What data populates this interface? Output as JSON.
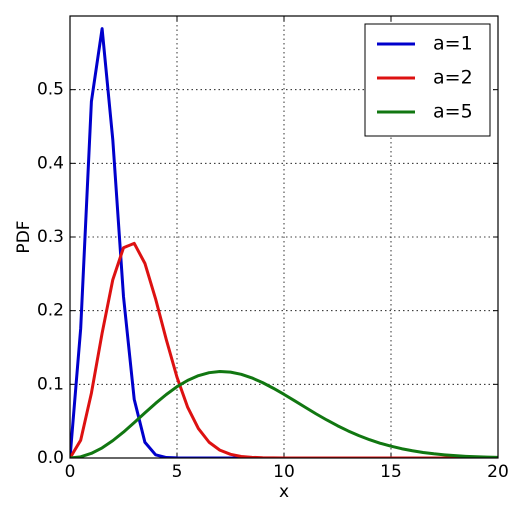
{
  "chart_data": {
    "type": "line",
    "x_label": "x",
    "y_label": "PDF",
    "x": [
      0,
      0.5,
      1,
      1.5,
      2,
      2.5,
      3,
      3.5,
      4,
      4.5,
      5,
      5.5,
      6,
      6.5,
      7,
      7.5,
      8,
      8.5,
      9,
      9.5,
      10,
      10.5,
      11,
      11.5,
      12,
      12.5,
      13,
      13.5,
      14,
      14.5,
      15,
      15.5,
      16,
      16.5,
      17,
      17.5,
      18,
      18.5,
      19,
      19.5,
      20
    ],
    "series": [
      {
        "name": "a=1",
        "color": "#0000cc",
        "values": [
          0,
          0.176,
          0.4839,
          0.5828,
          0.4319,
          0.2191,
          0.0798,
          0.0214,
          0.0043,
          0.0006,
          0.0001,
          0,
          0,
          0,
          0,
          0,
          0,
          0,
          0,
          0,
          0,
          0,
          0,
          0,
          0,
          0,
          0,
          0,
          0,
          0,
          0,
          0,
          0,
          0,
          0,
          0,
          0,
          0,
          0,
          0,
          0
        ]
      },
      {
        "name": "a=2",
        "color": "#dd1111",
        "values": [
          0,
          0.0242,
          0.088,
          0.1694,
          0.242,
          0.2854,
          0.2914,
          0.2642,
          0.216,
          0.1607,
          0.1096,
          0.0688,
          0.0399,
          0.0214,
          0.0107,
          0.005,
          0.0021,
          0.0009,
          0.0003,
          0.0001,
          0,
          0,
          0,
          0,
          0,
          0,
          0,
          0,
          0,
          0,
          0,
          0,
          0,
          0,
          0,
          0,
          0,
          0,
          0,
          0,
          0
        ]
      },
      {
        "name": "a=5",
        "color": "#117711",
        "values": [
          0,
          0.0016,
          0.0063,
          0.0137,
          0.0236,
          0.0352,
          0.048,
          0.0612,
          0.0742,
          0.0862,
          0.0968,
          0.1054,
          0.1118,
          0.1158,
          0.1174,
          0.1166,
          0.1136,
          0.1087,
          0.1023,
          0.0947,
          0.0864,
          0.0776,
          0.0687,
          0.0599,
          0.0516,
          0.0438,
          0.0367,
          0.0304,
          0.0248,
          0.02,
          0.016,
          0.0126,
          0.0098,
          0.0075,
          0.0057,
          0.0043,
          0.0032,
          0.0023,
          0.0017,
          0.0012,
          0.0009
        ]
      }
    ],
    "xlim": [
      0,
      20
    ],
    "xticks": [
      0,
      5,
      10,
      15,
      20
    ],
    "ylim": [
      0,
      0.6
    ],
    "yticks": [
      {
        "value": 0,
        "label": "0.0"
      },
      {
        "value": 0.1,
        "label": "0.1"
      },
      {
        "value": 0.2,
        "label": "0.2"
      },
      {
        "value": 0.3,
        "label": "0.3"
      },
      {
        "value": 0.4,
        "label": "0.4"
      },
      {
        "value": 0.5,
        "label": "0.5"
      }
    ],
    "grid": true,
    "legend": "upper right"
  }
}
